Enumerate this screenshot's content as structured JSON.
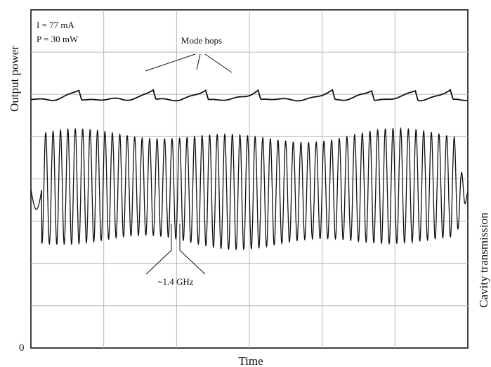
{
  "chart_data": {
    "type": "line",
    "xlabel": "Time",
    "ylabel_left": "Output power",
    "ylabel_right": "Cavity transmission",
    "y_zero_label": "0",
    "grid": true,
    "grid_divisions": {
      "x": 6,
      "y": 8
    },
    "annotations": {
      "conditions": [
        "I = 77 mA",
        "P = 30 mW"
      ],
      "mode_hops_label": "Mode hops",
      "spacing_label": "~1.4 GHz"
    },
    "series": [
      {
        "key": "output_power",
        "color": "#111111",
        "level": 0.735,
        "mode_hop_positions": [
          0.11,
          0.28,
          0.4,
          0.52,
          0.69,
          0.78,
          0.88,
          0.96
        ],
        "mode_hop_height": 0.035
      },
      {
        "key": "cavity_transmission",
        "color": "#111111",
        "fringe_count": 58,
        "center": 0.47,
        "amplitude": 0.34,
        "fringe_spacing": "~1.4 GHz"
      }
    ]
  }
}
